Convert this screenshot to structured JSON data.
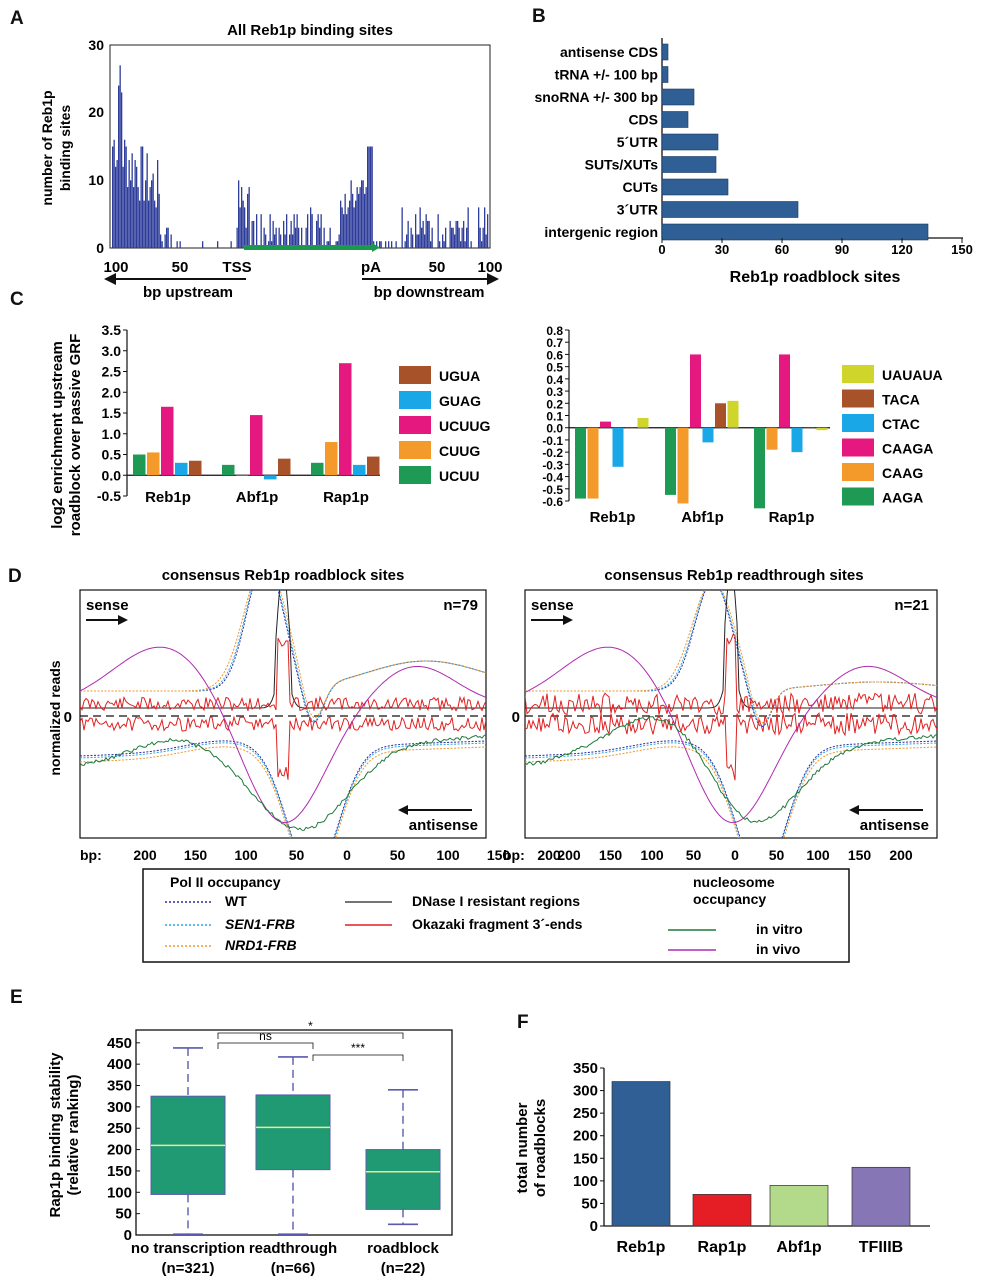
{
  "panel_letters": {
    "A": "A",
    "B": "B",
    "C": "C",
    "D": "D",
    "E": "E",
    "F": "F"
  },
  "panelA": {
    "title": "All Reb1p binding sites",
    "ylabel_line1": "number of Reb1p",
    "ylabel_line2": "binding sites",
    "yticks": [
      "0",
      "10",
      "20",
      "30"
    ],
    "xticks": [
      "100",
      "50",
      "TSS",
      "pA",
      "50",
      "100"
    ],
    "upstream_label": "bp upstream",
    "downstream_label": "bp downstream",
    "colors": {
      "bars": "#2e3c9a",
      "transcript": "#1a9a4a"
    }
  },
  "panelD": {
    "left_title": "consensus Reb1p roadblock sites",
    "right_title": "consensus Reb1p readthrough sites",
    "left_n": "n=79",
    "right_n": "n=21",
    "sense": "sense",
    "antisense": "antisense",
    "ylabel": "normalized reads",
    "zero": "0",
    "bp_label": "bp:",
    "xticks": [
      "200",
      "150",
      "100",
      "50",
      "0",
      "50",
      "100",
      "150",
      "200"
    ],
    "legend": {
      "pol2_title": "Pol II occupancy",
      "wt": "WT",
      "sen1": "SEN1-FRB",
      "nrd1": "NRD1-FRB",
      "dnase": "DNase I resistant regions",
      "okazaki": "Okazaki fragment 3´-ends",
      "nuc_title_1": "nucleosome",
      "nuc_title_2": "occupancy",
      "in_vitro": "in vitro",
      "in_vivo": "in vivo"
    },
    "colors": {
      "wt": "#2a2aa0",
      "sen1": "#29a7e0",
      "nrd1": "#f0962a",
      "dnase": "#222222",
      "okazaki": "#e02020",
      "in_vitro": "#1f7a3a",
      "in_vivo": "#b02ab0"
    }
  },
  "chart_data": [
    {
      "id": "B",
      "type": "bar",
      "orientation": "horizontal",
      "categories": [
        "antisense CDS",
        "tRNA +/- 100 bp",
        "snoRNA +/- 300 bp",
        "CDS",
        "5´UTR",
        "SUTs/XUTs",
        "CUTs",
        "3´UTR",
        "intergenic region"
      ],
      "values": [
        3,
        3,
        16,
        13,
        28,
        27,
        33,
        68,
        133
      ],
      "xlabel": "Reb1p roadblock sites",
      "xticks": [
        0,
        30,
        60,
        90,
        120,
        150
      ],
      "xlim": [
        0,
        150
      ],
      "color": "#2f5f95"
    },
    {
      "id": "C-left",
      "type": "bar",
      "ylabel_line1": "log2 enrichment upstream",
      "ylabel_line2": "roadblock over passive GRF",
      "categories": [
        "Reb1p",
        "Abf1p",
        "Rap1p"
      ],
      "yticks": [
        "-0.5",
        "0.0",
        "0.5",
        "1.0",
        "1.5",
        "2.0",
        "2.5",
        "3.0",
        "3.5"
      ],
      "ylim": [
        -0.5,
        3.5
      ],
      "series": [
        {
          "name": "UCUU",
          "color": "#1f9a55",
          "values": [
            0.5,
            0.25,
            0.3
          ]
        },
        {
          "name": "CUUG",
          "color": "#f39a2a",
          "values": [
            0.55,
            0.0,
            0.8
          ]
        },
        {
          "name": "UCUUG",
          "color": "#e4187e",
          "values": [
            1.65,
            1.45,
            2.7
          ]
        },
        {
          "name": "GUAG",
          "color": "#1aa7e8",
          "values": [
            0.3,
            -0.1,
            0.25
          ]
        },
        {
          "name": "UGUA",
          "color": "#a8522a",
          "values": [
            0.35,
            0.4,
            0.45
          ]
        }
      ],
      "legend_order": [
        "UGUA",
        "GUAG",
        "UCUUG",
        "CUUG",
        "UCUU"
      ]
    },
    {
      "id": "C-right",
      "type": "bar",
      "categories": [
        "Reb1p",
        "Abf1p",
        "Rap1p"
      ],
      "yticks": [
        "-0.6",
        "-0.5",
        "-0.4",
        "-0.3",
        "-0.2",
        "-0.1",
        "0.0",
        "0.1",
        "0.2",
        "0.3",
        "0.4",
        "0.5",
        "0.6",
        "0.7",
        "0.8"
      ],
      "ylim": [
        -0.6,
        0.8
      ],
      "series": [
        {
          "name": "AAGA",
          "color": "#1f9a55",
          "values": [
            -0.58,
            -0.55,
            -0.66
          ]
        },
        {
          "name": "CAAG",
          "color": "#f39a2a",
          "values": [
            -0.58,
            -0.62,
            -0.18
          ]
        },
        {
          "name": "CAAGA",
          "color": "#e4187e",
          "values": [
            0.05,
            0.6,
            0.6
          ]
        },
        {
          "name": "CTAC",
          "color": "#1aa7e8",
          "values": [
            -0.32,
            -0.12,
            -0.2
          ]
        },
        {
          "name": "TACA",
          "color": "#a8522a",
          "values": [
            0.0,
            0.2,
            0.0
          ]
        },
        {
          "name": "UAUAUA",
          "color": "#cfd52a",
          "values": [
            0.08,
            0.22,
            -0.02
          ]
        }
      ],
      "legend_order": [
        "UAUAUA",
        "TACA",
        "CTAC",
        "CAAGA",
        "CAAG",
        "AAGA"
      ]
    },
    {
      "id": "E",
      "type": "box",
      "ylabel_line1": "Rap1p binding stability",
      "ylabel_line2": "(relative ranking)",
      "yticks": [
        0,
        50,
        100,
        150,
        200,
        250,
        300,
        350,
        400,
        450
      ],
      "ylim": [
        0,
        480
      ],
      "groups": [
        {
          "label": "no transcription",
          "n": "(n=321)",
          "min": 2,
          "q1": 95,
          "median": 210,
          "q3": 325,
          "max": 438
        },
        {
          "label": "readthrough",
          "n": "(n=66)",
          "min": 2,
          "q1": 153,
          "median": 252,
          "q3": 328,
          "max": 417
        },
        {
          "label": "roadblock",
          "n": "(n=22)",
          "min": 25,
          "q1": 60,
          "median": 148,
          "q3": 200,
          "max": 340
        }
      ],
      "significance": [
        {
          "pair": [
            0,
            1
          ],
          "label": "ns"
        },
        {
          "pair": [
            0,
            2
          ],
          "label": "*"
        },
        {
          "pair": [
            1,
            2
          ],
          "label": "***"
        }
      ],
      "colors": {
        "box": "#1f9a72",
        "median": "#e8e89a",
        "whisker": "#5a5ab0"
      }
    },
    {
      "id": "F",
      "type": "bar",
      "ylabel_line1": "total number",
      "ylabel_line2": "of roadblocks",
      "categories": [
        "Reb1p",
        "Rap1p",
        "Abf1p",
        "TFIIIB"
      ],
      "values": [
        320,
        70,
        90,
        130
      ],
      "colors": [
        "#2f5f95",
        "#e51d24",
        "#b3d98a",
        "#8676b5"
      ],
      "yticks": [
        0,
        50,
        100,
        150,
        200,
        250,
        300,
        350
      ],
      "ylim": [
        0,
        350
      ]
    }
  ]
}
